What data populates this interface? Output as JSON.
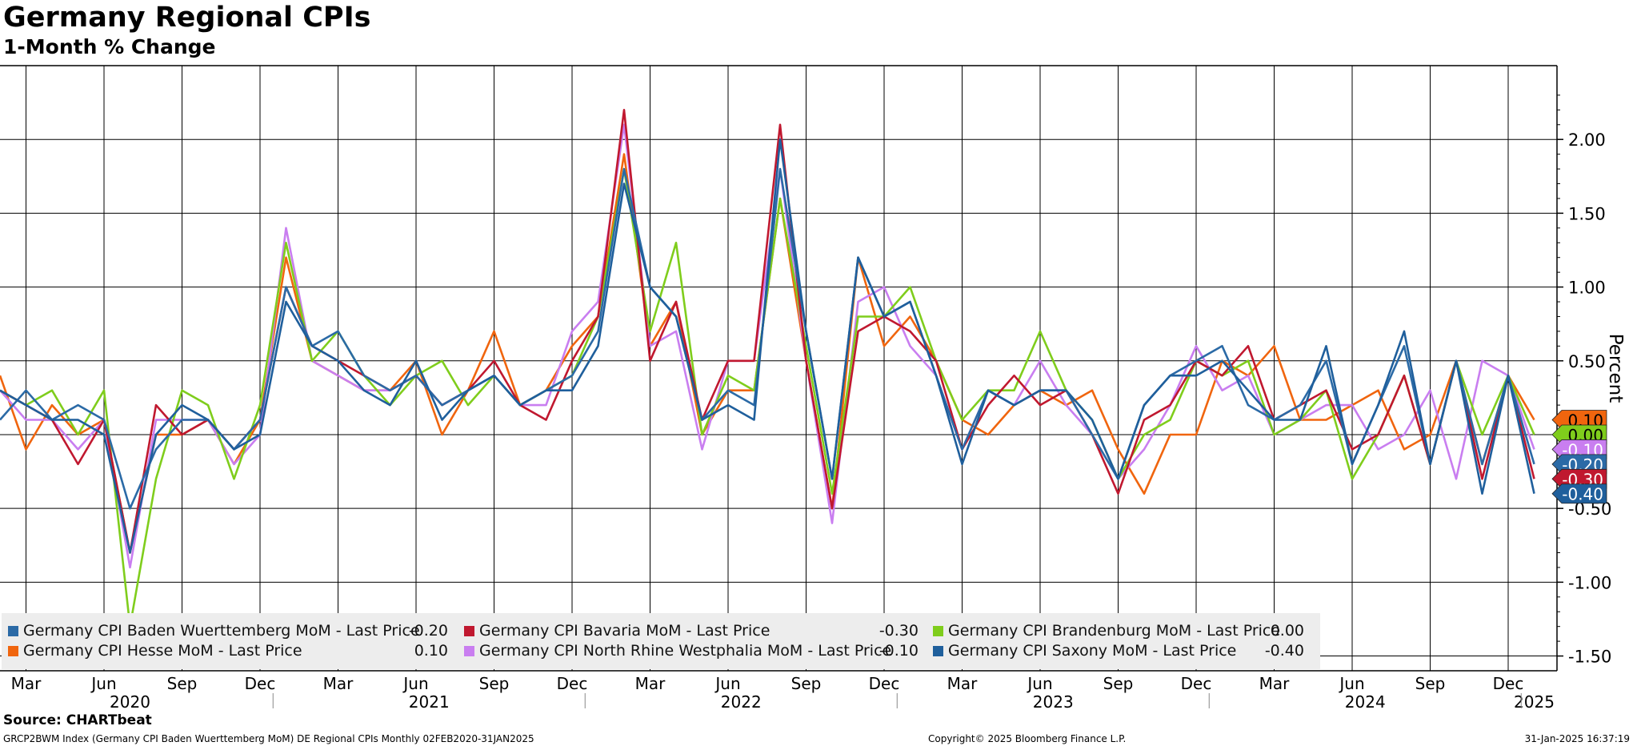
{
  "colors": {
    "baden": "#2b6aa6",
    "bavaria": "#c0182f",
    "brandenburg": "#7fcd1c",
    "hesse": "#f0650e",
    "nrw": "#c97ef0",
    "saxony": "#1f5f9c"
  },
  "chart_data": {
    "type": "line",
    "title": "Germany Regional CPIs",
    "subtitle": "1-Month % Change",
    "ylabel": "Percent",
    "ylim": [
      -1.6,
      2.5
    ],
    "yticks": [
      2.0,
      1.5,
      1.0,
      0.5,
      -0.5,
      -1.0,
      -1.5
    ],
    "ytick_labels": [
      "2.00",
      "1.50",
      "1.00",
      "0.50",
      "-0.50",
      "-1.00",
      "-1.50"
    ],
    "x": [
      "2020-02",
      "2020-03",
      "2020-04",
      "2020-05",
      "2020-06",
      "2020-07",
      "2020-08",
      "2020-09",
      "2020-10",
      "2020-11",
      "2020-12",
      "2021-01",
      "2021-02",
      "2021-03",
      "2021-04",
      "2021-05",
      "2021-06",
      "2021-07",
      "2021-08",
      "2021-09",
      "2021-10",
      "2021-11",
      "2021-12",
      "2022-01",
      "2022-02",
      "2022-03",
      "2022-04",
      "2022-05",
      "2022-06",
      "2022-07",
      "2022-08",
      "2022-09",
      "2022-10",
      "2022-11",
      "2022-12",
      "2023-01",
      "2023-02",
      "2023-03",
      "2023-04",
      "2023-05",
      "2023-06",
      "2023-07",
      "2023-08",
      "2023-09",
      "2023-10",
      "2023-11",
      "2023-12",
      "2024-01",
      "2024-02",
      "2024-03",
      "2024-04",
      "2024-05",
      "2024-06",
      "2024-07",
      "2024-08",
      "2024-09",
      "2024-10",
      "2024-11",
      "2024-12",
      "2025-01"
    ],
    "month_ticks": [
      {
        "index": 1,
        "label": "Mar"
      },
      {
        "index": 4,
        "label": "Jun"
      },
      {
        "index": 7,
        "label": "Sep"
      },
      {
        "index": 10,
        "label": "Dec"
      },
      {
        "index": 13,
        "label": "Mar"
      },
      {
        "index": 16,
        "label": "Jun"
      },
      {
        "index": 19,
        "label": "Sep"
      },
      {
        "index": 22,
        "label": "Dec"
      },
      {
        "index": 25,
        "label": "Mar"
      },
      {
        "index": 28,
        "label": "Jun"
      },
      {
        "index": 31,
        "label": "Sep"
      },
      {
        "index": 34,
        "label": "Dec"
      },
      {
        "index": 37,
        "label": "Mar"
      },
      {
        "index": 40,
        "label": "Jun"
      },
      {
        "index": 43,
        "label": "Sep"
      },
      {
        "index": 46,
        "label": "Dec"
      },
      {
        "index": 49,
        "label": "Mar"
      },
      {
        "index": 52,
        "label": "Jun"
      },
      {
        "index": 55,
        "label": "Sep"
      },
      {
        "index": 58,
        "label": "Dec"
      }
    ],
    "year_labels": [
      {
        "center": 5,
        "label": "2020"
      },
      {
        "center": 16.5,
        "label": "2021"
      },
      {
        "center": 28.5,
        "label": "2022"
      },
      {
        "center": 40.5,
        "label": "2023"
      },
      {
        "center": 52.5,
        "label": "2024"
      },
      {
        "center": 59,
        "label": "2025"
      }
    ],
    "year_separators": [
      10.5,
      22.5,
      34.5,
      46.5,
      58.5
    ],
    "series": [
      {
        "key": "hesse",
        "name": "Germany CPI Hesse MoM - Last Price",
        "last": "0.10",
        "values": [
          0.4,
          -0.1,
          0.2,
          0.0,
          0.1,
          -0.8,
          0.0,
          0.0,
          0.1,
          -0.2,
          0.1,
          1.2,
          0.5,
          0.4,
          0.3,
          0.3,
          0.5,
          0.0,
          0.3,
          0.7,
          0.2,
          0.3,
          0.6,
          0.8,
          1.9,
          0.6,
          0.9,
          0.0,
          0.3,
          0.3,
          1.6,
          0.5,
          -0.5,
          1.2,
          0.6,
          0.8,
          0.5,
          0.1,
          0.0,
          0.2,
          0.3,
          0.2,
          0.3,
          -0.1,
          -0.4,
          0.0,
          0.0,
          0.5,
          0.4,
          0.6,
          0.1,
          0.1,
          0.2,
          0.3,
          -0.1,
          0.0,
          0.5,
          -0.2,
          0.4,
          0.1
        ]
      },
      {
        "key": "nrw",
        "name": "Germany CPI North Rhine Westphalia MoM - Last Price",
        "last": "-0.10",
        "values": [
          0.3,
          0.1,
          0.1,
          -0.1,
          0.1,
          -0.9,
          0.1,
          0.1,
          0.1,
          -0.2,
          0.0,
          1.4,
          0.5,
          0.4,
          0.3,
          0.3,
          0.4,
          0.2,
          0.3,
          0.4,
          0.2,
          0.2,
          0.7,
          0.9,
          2.1,
          0.6,
          0.7,
          -0.1,
          0.5,
          0.5,
          1.8,
          0.5,
          -0.6,
          0.9,
          1.0,
          0.6,
          0.4,
          -0.1,
          0.3,
          0.2,
          0.5,
          0.2,
          0.0,
          -0.3,
          -0.1,
          0.2,
          0.6,
          0.3,
          0.4,
          0.0,
          0.1,
          0.2,
          0.2,
          -0.1,
          0.0,
          0.3,
          -0.3,
          0.5,
          0.4,
          -0.1
        ]
      },
      {
        "key": "brandenburg",
        "name": "Germany CPI Brandenburg MoM - Last Price",
        "last": "0.00",
        "values": [
          0.3,
          0.2,
          0.3,
          0.0,
          0.3,
          -1.3,
          -0.3,
          0.3,
          0.2,
          -0.3,
          0.2,
          1.3,
          0.5,
          0.7,
          0.4,
          0.2,
          0.4,
          0.5,
          0.2,
          0.4,
          0.2,
          0.3,
          0.4,
          0.8,
          1.8,
          0.7,
          1.3,
          0.0,
          0.4,
          0.3,
          1.6,
          0.6,
          -0.4,
          0.8,
          0.8,
          1.0,
          0.5,
          0.1,
          0.3,
          0.3,
          0.7,
          0.3,
          0.1,
          -0.3,
          0.0,
          0.1,
          0.5,
          0.4,
          0.5,
          0.0,
          0.1,
          0.3,
          -0.3,
          0.0,
          0.4,
          -0.2,
          0.5,
          0.0,
          0.4,
          0.0
        ]
      },
      {
        "key": "bavaria",
        "name": "Germany CPI Bavaria MoM - Last Price",
        "last": "-0.30",
        "values": [
          0.3,
          0.2,
          0.1,
          -0.2,
          0.1,
          -0.8,
          0.2,
          0.0,
          0.1,
          -0.1,
          0.1,
          1.0,
          0.6,
          0.5,
          0.4,
          0.3,
          0.4,
          0.2,
          0.3,
          0.5,
          0.2,
          0.1,
          0.5,
          0.8,
          2.2,
          0.5,
          0.9,
          0.1,
          0.5,
          0.5,
          2.1,
          0.5,
          -0.5,
          0.7,
          0.8,
          0.7,
          0.5,
          -0.1,
          0.2,
          0.4,
          0.2,
          0.3,
          0.0,
          -0.4,
          0.1,
          0.2,
          0.5,
          0.4,
          0.6,
          0.1,
          0.2,
          0.3,
          -0.1,
          0.0,
          0.4,
          -0.2,
          0.5,
          -0.3,
          0.4,
          -0.3
        ]
      },
      {
        "key": "baden",
        "name": "Germany CPI Baden Wuerttemberg MoM - Last Price",
        "last": "-0.20",
        "values": [
          0.1,
          0.3,
          0.1,
          0.2,
          0.1,
          -0.5,
          -0.1,
          0.1,
          0.1,
          -0.1,
          0.1,
          1.0,
          0.6,
          0.7,
          0.4,
          0.3,
          0.4,
          0.2,
          0.3,
          0.4,
          0.2,
          0.3,
          0.4,
          0.7,
          1.8,
          1.0,
          0.8,
          0.1,
          0.3,
          0.2,
          1.8,
          0.7,
          -0.3,
          1.2,
          0.8,
          0.9,
          0.4,
          -0.1,
          0.3,
          0.2,
          0.3,
          0.3,
          0.0,
          -0.3,
          0.2,
          0.4,
          0.5,
          0.6,
          0.2,
          0.1,
          0.2,
          0.5,
          -0.2,
          0.2,
          0.6,
          -0.2,
          0.5,
          -0.2,
          0.4,
          -0.2
        ]
      },
      {
        "key": "saxony",
        "name": "Germany CPI Saxony MoM - Last Price",
        "last": "-0.40",
        "values": [
          0.3,
          0.2,
          0.1,
          0.1,
          0.0,
          -0.8,
          0.0,
          0.2,
          0.1,
          -0.1,
          0.0,
          0.9,
          0.6,
          0.5,
          0.3,
          0.2,
          0.5,
          0.1,
          0.3,
          0.4,
          0.2,
          0.3,
          0.3,
          0.6,
          1.7,
          1.0,
          0.8,
          0.1,
          0.2,
          0.1,
          2.0,
          0.7,
          -0.3,
          1.2,
          0.8,
          0.9,
          0.4,
          -0.2,
          0.3,
          0.2,
          0.3,
          0.3,
          0.1,
          -0.3,
          0.2,
          0.4,
          0.4,
          0.5,
          0.3,
          0.1,
          0.1,
          0.6,
          -0.2,
          0.2,
          0.7,
          -0.2,
          0.5,
          -0.4,
          0.4,
          -0.4
        ]
      }
    ],
    "legend": [
      {
        "key": "baden",
        "label": "Germany CPI Baden Wuerttemberg MoM - Last Price",
        "value": "-0.20"
      },
      {
        "key": "bavaria",
        "label": "Germany CPI Bavaria MoM - Last Price",
        "value": "-0.30"
      },
      {
        "key": "brandenburg",
        "label": "Germany CPI Brandenburg MoM - Last Price",
        "value": "0.00"
      },
      {
        "key": "hesse",
        "label": "Germany CPI Hesse MoM - Last Price",
        "value": "0.10"
      },
      {
        "key": "nrw",
        "label": "Germany CPI North Rhine Westphalia MoM - Last Price",
        "value": "-0.10"
      },
      {
        "key": "saxony",
        "label": "Germany CPI Saxony MoM - Last Price",
        "value": "-0.40"
      }
    ],
    "last_value_tags": [
      {
        "key": "hesse",
        "value": 0.1,
        "label": "0.10"
      },
      {
        "key": "brandenburg",
        "value": 0.0,
        "label": "0.00"
      },
      {
        "key": "nrw",
        "value": -0.1,
        "label": "-0.10"
      },
      {
        "key": "baden",
        "value": -0.2,
        "label": "-0.20"
      },
      {
        "key": "bavaria",
        "value": -0.3,
        "label": "-0.30"
      },
      {
        "key": "saxony",
        "value": -0.4,
        "label": "-0.40"
      }
    ]
  },
  "source": "Source: CHARTbeat",
  "footer": {
    "left": "GRCP2BWM Index (Germany CPI Baden Wuerttemberg MoM) DE Regional CPIs  Monthly 02FEB2020-31JAN2025",
    "center": "Copyright© 2025 Bloomberg Finance L.P.",
    "right": "31-Jan-2025 16:37:19"
  }
}
